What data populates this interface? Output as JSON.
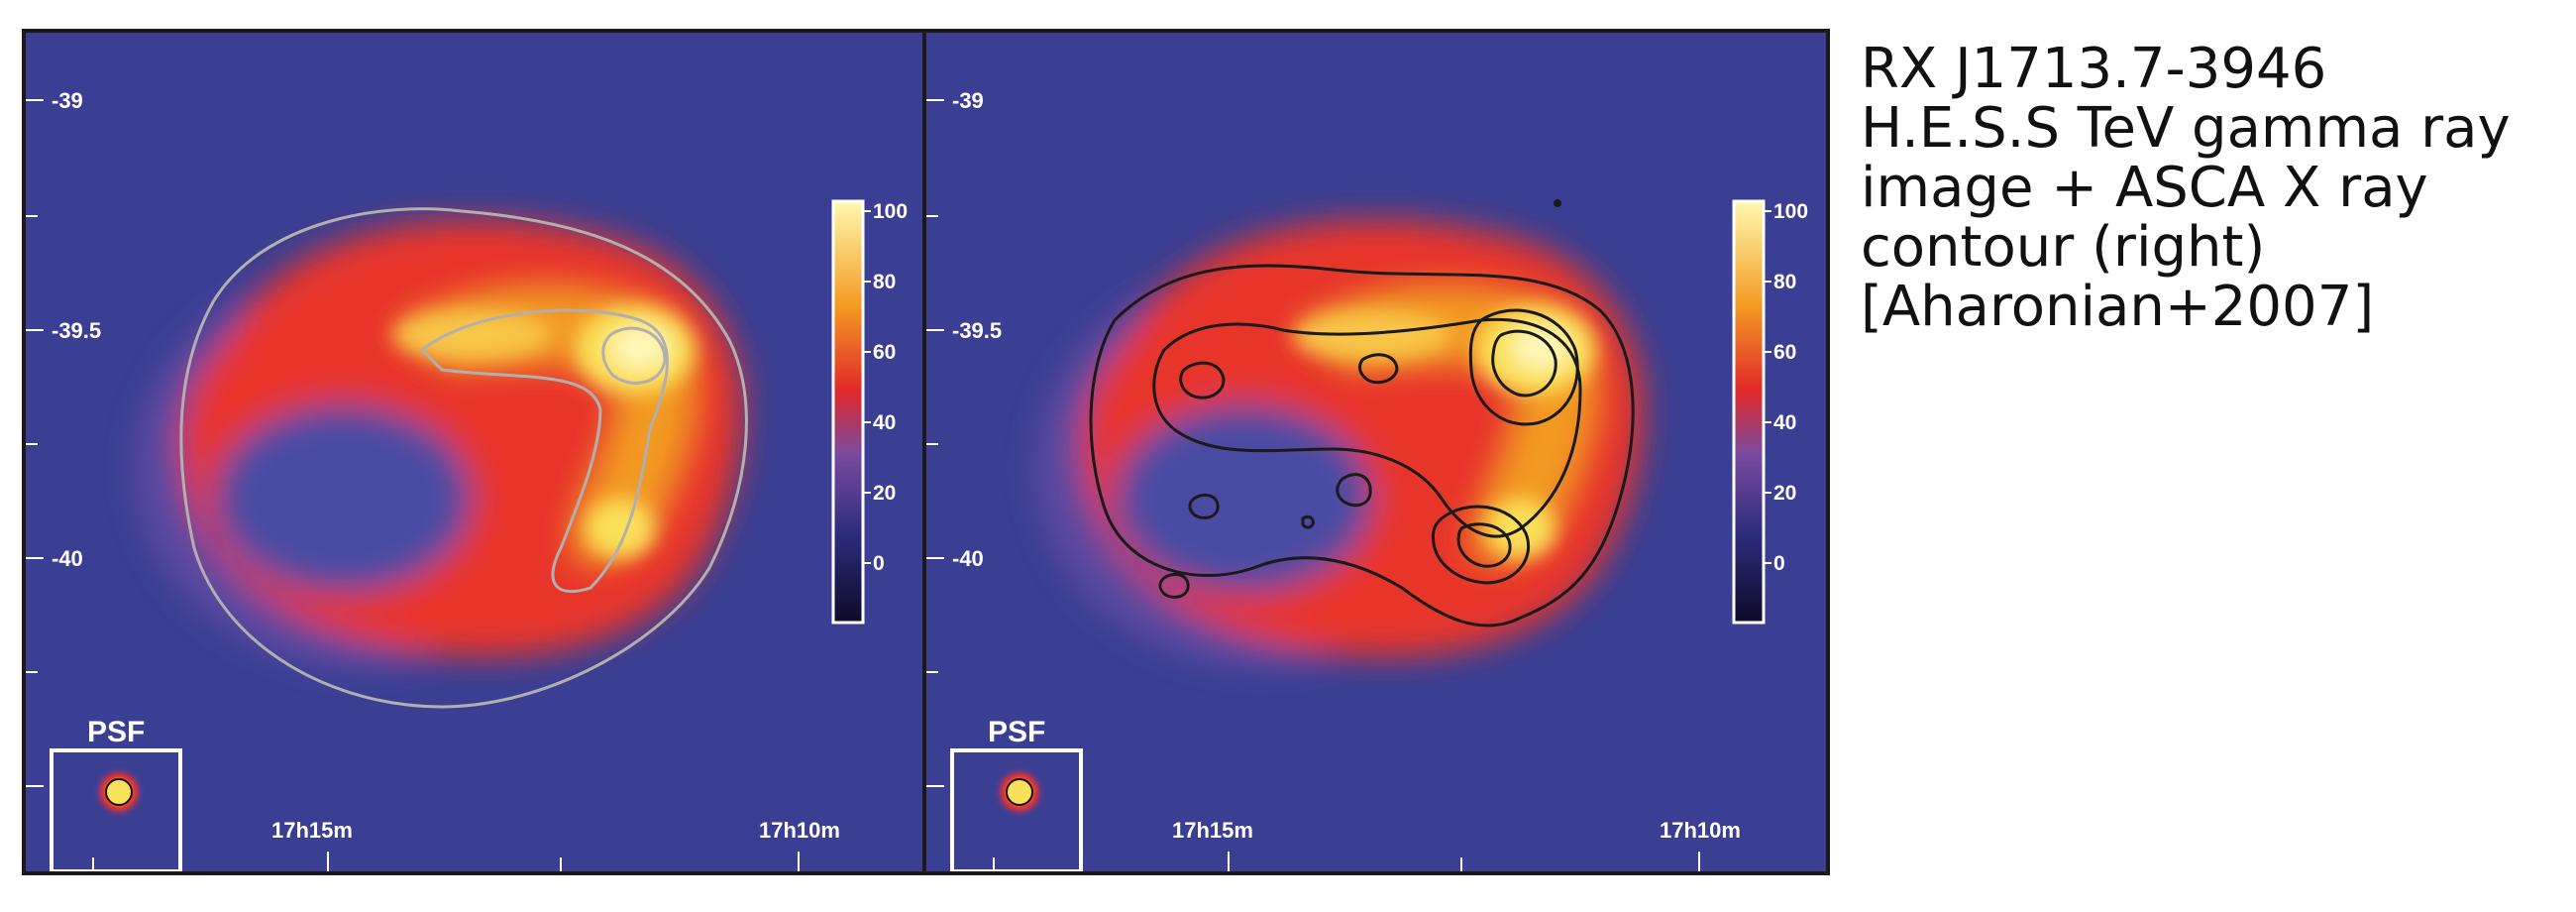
{
  "caption": {
    "lines": [
      "RX J1713.7-3946",
      "H.E.S.S TeV gamma ray",
      "image + ASCA X ray",
      "contour (right)",
      "[Aharonian+2007]"
    ]
  },
  "panels": [
    {
      "id": "left",
      "contours": "gray",
      "y_ticks": [
        "-39",
        "-39.5",
        "-40"
      ],
      "x_ticks": [
        "17h15m",
        "17h10m"
      ],
      "psf_label": "PSF",
      "colorbar": {
        "ticks": [
          "100",
          "80",
          "60",
          "40",
          "20",
          "0"
        ],
        "range": [
          0,
          100
        ]
      }
    },
    {
      "id": "right",
      "contours": "black",
      "y_ticks": [
        "-39",
        "-39.5",
        "-40"
      ],
      "x_ticks": [
        "17h15m",
        "17h10m"
      ],
      "psf_label": "PSF",
      "colorbar": {
        "ticks": [
          "100",
          "80",
          "60",
          "40",
          "20",
          "0"
        ],
        "range": [
          0,
          100
        ]
      }
    }
  ],
  "colors": {
    "background_blue": "#3a3f93",
    "shell_red": "#e8352b",
    "shell_orange": "#f39a22",
    "shell_yellow": "#fbe05a",
    "peak_white": "#fff7b8"
  }
}
